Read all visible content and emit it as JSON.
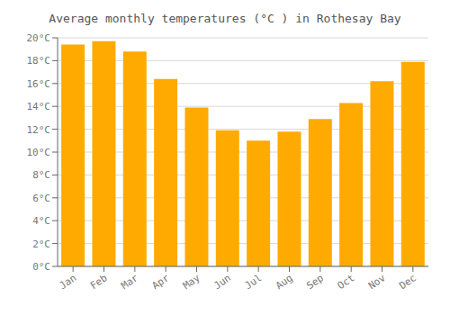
{
  "chart_data": {
    "type": "bar",
    "title": "Average monthly temperatures (°C ) in Rothesay Bay",
    "categories": [
      "Jan",
      "Feb",
      "Mar",
      "Apr",
      "May",
      "Jun",
      "Jul",
      "Aug",
      "Sep",
      "Oct",
      "Nov",
      "Dec"
    ],
    "values": [
      19.4,
      19.7,
      18.8,
      16.4,
      13.9,
      11.9,
      11.0,
      11.8,
      12.9,
      14.3,
      16.2,
      17.9
    ],
    "color": "#FFAA00",
    "ylim": [
      0,
      20
    ],
    "yticks": [
      {
        "value": 0,
        "label": "0°C"
      },
      {
        "value": 2,
        "label": "2°C"
      },
      {
        "value": 4,
        "label": "4°C"
      },
      {
        "value": 6,
        "label": "6°C"
      },
      {
        "value": 8,
        "label": "8°C"
      },
      {
        "value": 10,
        "label": "10°C"
      },
      {
        "value": 12,
        "label": "12°C"
      },
      {
        "value": 14,
        "label": "14°C"
      },
      {
        "value": 16,
        "label": "16°C"
      },
      {
        "value": 18,
        "label": "18°C"
      },
      {
        "value": 20,
        "label": "20°C"
      }
    ],
    "grid": true
  }
}
